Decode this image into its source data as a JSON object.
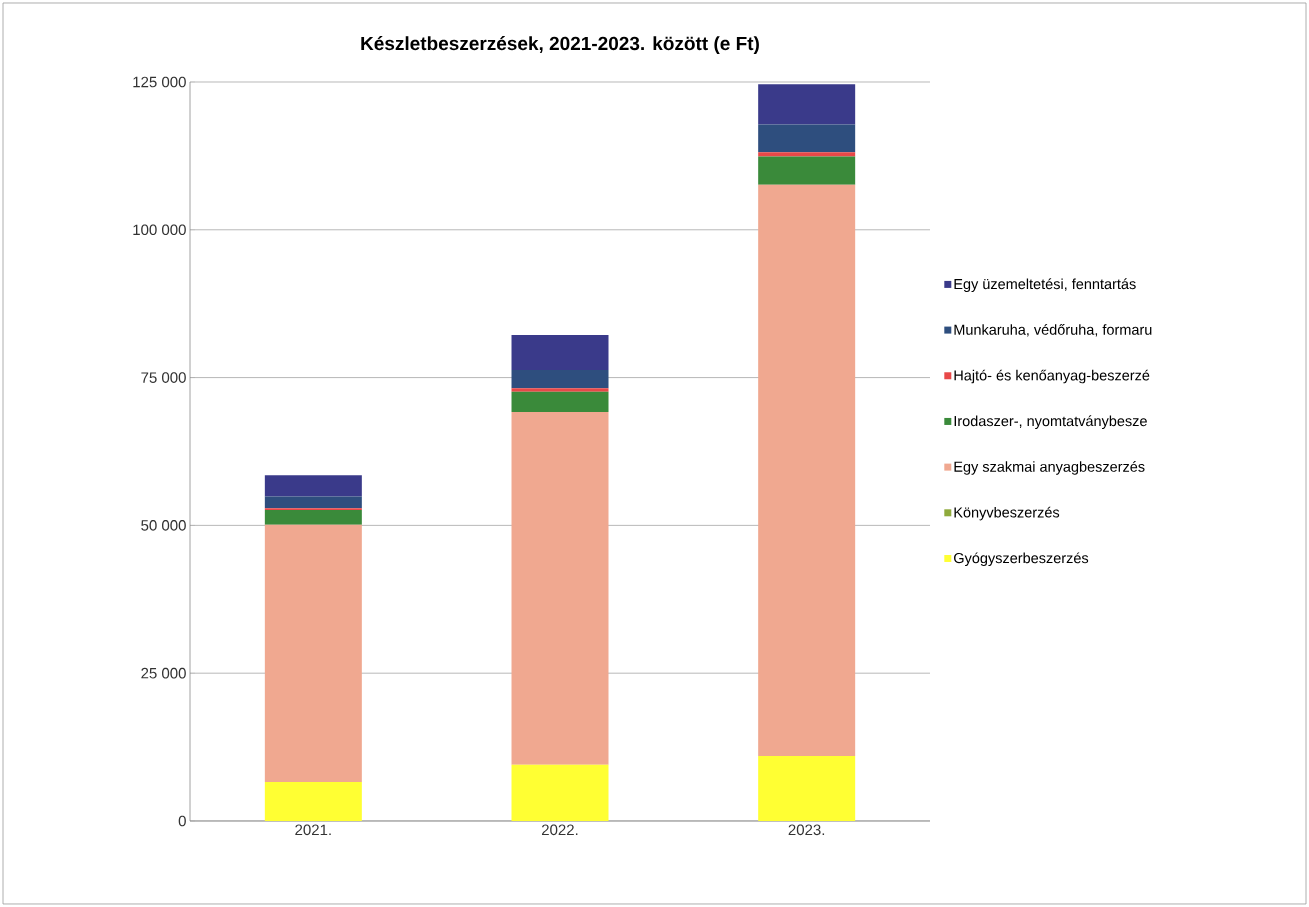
{
  "chart_data": {
    "type": "bar",
    "title": "Készletbeszerzések, 2021-2023. között (e Ft)",
    "stacked": true,
    "categories": [
      "2021.",
      "2022.",
      "2023."
    ],
    "series": [
      {
        "name": "Gyógyszerbeszerzés",
        "color": "#ffff33",
        "values": [
          6600,
          9500,
          11000
        ]
      },
      {
        "name": "Könyvbeszerzés",
        "color": "#8faa3c",
        "values": [
          0,
          0,
          0
        ]
      },
      {
        "name": "Egy szakmai anyagbeszerzés",
        "color": "#f0a890",
        "values": [
          43500,
          59700,
          96600
        ]
      },
      {
        "name": "Irodaszer-, nyomtatványbesze",
        "color": "#3a8a3a",
        "values": [
          2500,
          3400,
          4800
        ]
      },
      {
        "name": "Hajtó- és kenőanyag-beszerzé",
        "color": "#e84848",
        "values": [
          300,
          600,
          700
        ]
      },
      {
        "name": "Munkaruha, védőruha, formaru",
        "color": "#2e4e7e",
        "values": [
          2000,
          3100,
          4700
        ]
      },
      {
        "name": "Egy üzemeltetési, fenntartás",
        "color": "#3a3a8a",
        "values": [
          3600,
          5900,
          6800
        ]
      }
    ],
    "ylim": [
      0,
      125000
    ],
    "yticks": [
      {
        "value": 0,
        "label": "0"
      },
      {
        "value": 25000,
        "label": "25 000"
      },
      {
        "value": 50000,
        "label": "50 000"
      },
      {
        "value": 75000,
        "label": "75 000"
      },
      {
        "value": 100000,
        "label": "100 000"
      },
      {
        "value": 125000,
        "label": "125 000"
      }
    ],
    "grid": "y",
    "legend": "right"
  }
}
